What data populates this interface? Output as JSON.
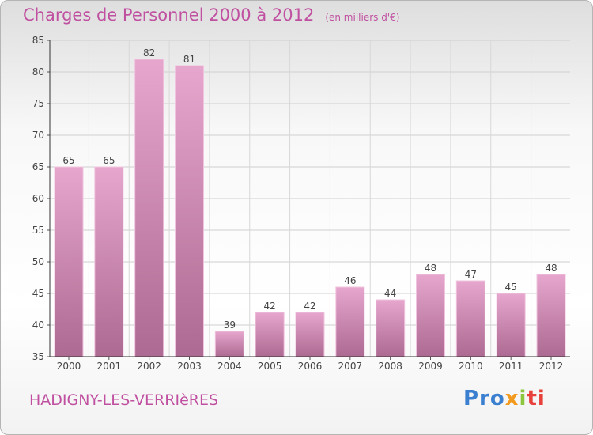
{
  "title": "Charges de Personnel 2000 à 2012",
  "unit_note": "(en milliers d'€)",
  "location": "HADIGNY-LES-VERRIèRES",
  "logo": {
    "p1": "Pro",
    "p2": "x",
    "p3": "i",
    "p4": "ti"
  },
  "colors": {
    "bar_top": "#e6a6cd",
    "bar_bottom": "#ad6a92",
    "text_accent": "#c050a0"
  },
  "chart_data": {
    "type": "bar",
    "categories": [
      "2000",
      "2001",
      "2002",
      "2003",
      "2004",
      "2005",
      "2006",
      "2007",
      "2008",
      "2009",
      "2010",
      "2011",
      "2012"
    ],
    "values": [
      65,
      65,
      82,
      81,
      39,
      42,
      42,
      46,
      44,
      48,
      47,
      45,
      48
    ],
    "ylim": [
      35,
      85
    ],
    "yticks": [
      35,
      40,
      45,
      50,
      55,
      60,
      65,
      70,
      75,
      80,
      85
    ],
    "xlabel": "",
    "ylabel": "",
    "grid": true,
    "legend": "none"
  }
}
